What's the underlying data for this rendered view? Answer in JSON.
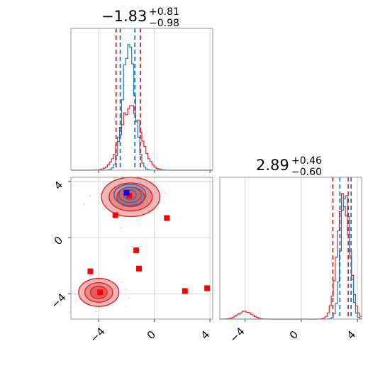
{
  "chart_data": [
    {
      "type": "histogram",
      "panel": "marginal-x",
      "title": {
        "median": "−1.83",
        "plus": "+0.81",
        "minus": "−0.98"
      },
      "xlim": [
        -6.0,
        4.2
      ],
      "grid": true,
      "series": [
        {
          "name": "",
          "color": "#1f77b4",
          "center": -1.83,
          "width": 0.42,
          "height": 1.0
        },
        {
          "name": "",
          "color": "#d62728",
          "center": -1.7,
          "width": 0.72,
          "height": 0.5
        }
      ],
      "quantile_lines": [
        {
          "color": "#d62728",
          "values": [
            -2.75,
            -1.0
          ]
        },
        {
          "color": "#1f77b4",
          "values": [
            -2.45,
            -1.4
          ]
        }
      ]
    },
    {
      "type": "histogram",
      "panel": "marginal-y",
      "title": {
        "median": "2.89",
        "plus": "+0.46",
        "minus": "−0.60"
      },
      "xlim": [
        -5.8,
        4.3
      ],
      "xticks": [
        "−4",
        "0",
        "4"
      ],
      "grid": true,
      "series": [
        {
          "name": "",
          "color": "#1f77b4",
          "center": 3.15,
          "width": 0.32,
          "height": 1.0
        },
        {
          "name": "",
          "color": "#d62728",
          "center": 3.0,
          "width": 0.45,
          "height": 0.92
        }
      ],
      "secondary_bump": {
        "color": "#d62728",
        "center": -4.0,
        "height": 0.06
      },
      "quantile_lines": [
        {
          "color": "#d62728",
          "values": [
            2.25,
            3.35
          ]
        },
        {
          "color": "#1f77b4",
          "values": [
            2.75,
            3.55
          ]
        }
      ]
    },
    {
      "type": "scatter",
      "panel": "joint",
      "xlim": [
        -6.0,
        4.2
      ],
      "ylim": [
        -5.8,
        4.3
      ],
      "xticks": [
        "−4",
        "0",
        "4"
      ],
      "yticks": [
        "−4",
        "0",
        "4"
      ],
      "grid": true,
      "markers": {
        "red": [
          [
            -2.8,
            1.6
          ],
          [
            0.9,
            1.4
          ],
          [
            -1.3,
            -0.9
          ],
          [
            -1.1,
            -2.2
          ],
          [
            -4.6,
            -2.4
          ],
          [
            2.2,
            -3.8
          ],
          [
            3.8,
            -3.6
          ],
          [
            -3.9,
            -3.9
          ],
          [
            -1.8,
            3.0
          ]
        ],
        "blue": [
          [
            -2.0,
            3.2
          ]
        ]
      },
      "contours": [
        {
          "color": "#d62728",
          "center": [
            -1.7,
            2.9
          ],
          "radii": [
            [
              2.1,
              1.4
            ],
            [
              1.55,
              1.0
            ],
            [
              1.0,
              0.7
            ]
          ]
        },
        {
          "color": "#d62728",
          "center": [
            -4.0,
            -3.9
          ],
          "radii": [
            [
              1.45,
              1.0
            ],
            [
              1.0,
              0.7
            ],
            [
              0.6,
              0.45
            ]
          ]
        },
        {
          "color": "#1f77b4",
          "center": [
            -1.75,
            3.05
          ],
          "radii": [
            [
              1.15,
              0.75
            ],
            [
              0.8,
              0.55
            ],
            [
              0.45,
              0.35
            ]
          ]
        }
      ]
    }
  ]
}
